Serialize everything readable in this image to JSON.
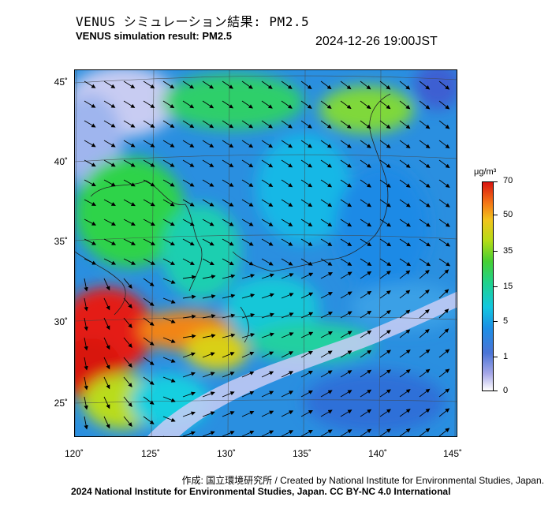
{
  "title_jp": "VENUS シミュレーション結果: PM2.5",
  "title_en": "VENUS simulation result: PM2.5",
  "timestamp": "2024-12-26 19:00JST",
  "map": {
    "latitude_labels": [
      "45˚",
      "40˚",
      "35˚",
      "30˚",
      "25˚"
    ],
    "longitude_labels": [
      "120˚",
      "125˚",
      "130˚",
      "135˚",
      "140˚",
      "145˚"
    ],
    "field": "PM2.5 concentration with wind vectors"
  },
  "colorbar": {
    "unit": "μg/m³",
    "labels": [
      "70",
      "50",
      "35",
      "15",
      "5",
      "1",
      "0"
    ],
    "colors": [
      "#d81410",
      "#f47615",
      "#f2c31c",
      "#46cf33",
      "#12c7e0",
      "#4b74d6",
      "#ffffff"
    ]
  },
  "credits": {
    "line1": "作成: 国立環境研究所 / Created by National Institute for Environmental Studies, Japan.",
    "line2": "2024 National Institute for Environmental Studies, Japan. CC BY-NC 4.0 International"
  }
}
